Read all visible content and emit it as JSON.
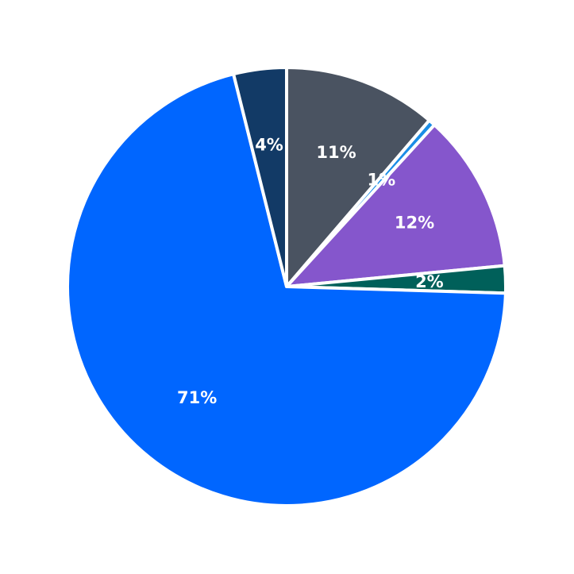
{
  "chart_data": {
    "type": "pie",
    "start": "top",
    "direction": "clockwise",
    "slices": [
      {
        "label": "11%",
        "value": 11.3,
        "color": "#4a5361"
      },
      {
        "label": "1%",
        "value": 0.5,
        "color": "#1a8de6"
      },
      {
        "label": "12%",
        "value": 11.7,
        "color": "#8556cc"
      },
      {
        "label": "2%",
        "value": 2.0,
        "color": "#00605a"
      },
      {
        "label": "71%",
        "value": 70.7,
        "color": "#0066ff"
      },
      {
        "label": "4%",
        "value": 3.9,
        "color": "#123a66"
      }
    ]
  }
}
